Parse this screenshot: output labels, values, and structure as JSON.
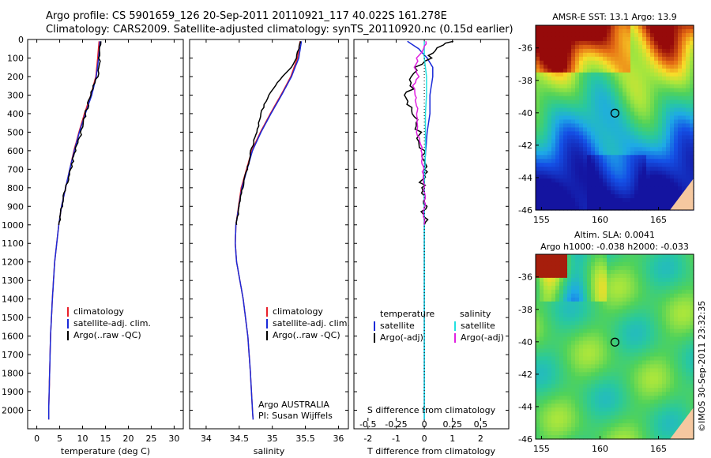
{
  "header": {
    "line1": "Argo profile: CS 5901659_126 20-Sep-2011 20110921_117 40.022S 161.278E",
    "line2": "Climatology: CARS2009. Satellite-adjusted climatology: synTS_20110920.nc (0.15d earlier)"
  },
  "colors": {
    "climatology": "#e8202a",
    "satellite": "#1a2ad8",
    "argo": "#000000",
    "salinity_satellite": "#22e0e0",
    "salinity_argo": "#e020e0"
  },
  "chart_data": [
    {
      "type": "line",
      "xlabel": "temperature (deg C)",
      "ylabel": "",
      "xlim": [
        -2,
        32
      ],
      "ylim": [
        2100,
        0
      ],
      "x_ticks": [
        "0",
        "5",
        "10",
        "15",
        "20",
        "25",
        "30"
      ],
      "y_ticks": [
        "0",
        "100",
        "200",
        "300",
        "400",
        "500",
        "600",
        "700",
        "800",
        "900",
        "1000",
        "1100",
        "1200",
        "1300",
        "1400",
        "1500",
        "1600",
        "1700",
        "1800",
        "1900",
        "2000"
      ],
      "legend": [
        "climatology",
        "satellite-adj. clim.",
        "Argo(..raw -QC)"
      ],
      "series": [
        {
          "name": "climatology",
          "depth": [
            10,
            100,
            200,
            300,
            400,
            500,
            600,
            700,
            800,
            900,
            1000,
            1200,
            1400,
            1600,
            1800,
            2000,
            2050
          ],
          "values": [
            13.6,
            13.3,
            12.9,
            11.8,
            10.4,
            9.2,
            8.1,
            7.2,
            6.3,
            5.4,
            4.8,
            3.9,
            3.4,
            3.0,
            2.8,
            2.6,
            2.6
          ]
        },
        {
          "name": "satellite-adj. clim.",
          "depth": [
            10,
            100,
            200,
            300,
            400,
            500,
            600,
            700,
            800,
            900,
            1000,
            1200,
            1400,
            1600,
            1800,
            2000,
            2050
          ],
          "values": [
            13.8,
            13.5,
            13.0,
            12.0,
            10.6,
            9.3,
            8.2,
            7.2,
            6.3,
            5.4,
            4.8,
            3.9,
            3.4,
            3.0,
            2.8,
            2.6,
            2.6
          ]
        },
        {
          "name": "Argo(..raw -QC)",
          "depth": [
            10,
            60,
            100,
            150,
            200,
            250,
            300,
            400,
            500,
            600,
            700,
            800,
            900,
            1000
          ],
          "values": [
            14.0,
            13.8,
            13.7,
            13.6,
            13.3,
            12.4,
            11.8,
            10.6,
            9.7,
            8.4,
            7.4,
            6.4,
            5.4,
            4.8
          ]
        }
      ]
    },
    {
      "type": "line",
      "xlabel": "salinity",
      "ylabel": "",
      "xlim": [
        33.75,
        36.15
      ],
      "ylim": [
        2100,
        0
      ],
      "x_ticks": [
        "34",
        "34.5",
        "35",
        "35.5",
        "36"
      ],
      "legend": [
        "climatology",
        "satellite-adj. clim.",
        "Argo(..raw -QC)"
      ],
      "annotation": [
        "Argo AUSTRALIA",
        "PI: Susan Wijffels"
      ],
      "series": [
        {
          "name": "climatology",
          "depth": [
            10,
            100,
            200,
            300,
            400,
            500,
            600,
            800,
            1000,
            1100,
            1200,
            1400,
            1600,
            1800,
            2000,
            2050
          ],
          "values": [
            35.42,
            35.38,
            35.28,
            35.13,
            34.97,
            34.82,
            34.69,
            34.53,
            34.45,
            34.44,
            34.46,
            34.56,
            34.63,
            34.67,
            34.7,
            34.71
          ]
        },
        {
          "name": "satellite-adj. clim.",
          "depth": [
            10,
            100,
            200,
            300,
            400,
            500,
            600,
            800,
            1000,
            1100,
            1200,
            1400,
            1600,
            1800,
            2000,
            2050
          ],
          "values": [
            35.44,
            35.4,
            35.29,
            35.14,
            34.98,
            34.83,
            34.7,
            34.54,
            34.45,
            34.44,
            34.46,
            34.56,
            34.63,
            34.67,
            34.7,
            34.71
          ]
        },
        {
          "name": "Argo(..raw -QC)",
          "depth": [
            10,
            50,
            100,
            150,
            200,
            250,
            300,
            350,
            400,
            450,
            500,
            600,
            700,
            800,
            900,
            1000
          ],
          "values": [
            35.43,
            35.4,
            35.36,
            35.28,
            35.15,
            35.05,
            34.95,
            34.88,
            34.83,
            34.8,
            34.76,
            34.68,
            34.62,
            34.55,
            34.5,
            34.46
          ]
        }
      ]
    },
    {
      "type": "line",
      "xlabel": "T difference from climatology",
      "ylabel": "",
      "xlim": [
        -2.5,
        3.0
      ],
      "ylim": [
        2100,
        0
      ],
      "x_ticks": [
        "-2",
        "-1",
        "0",
        "1",
        "2"
      ],
      "x2_label": "S difference from climatology",
      "x2_ticks": [
        "-0.5",
        "-0.25",
        "0",
        "0.25",
        "0.5"
      ],
      "legend_left_title": "temperature",
      "legend_right_title": "salinity",
      "legend": [
        "satellite",
        "Argo(-adj)",
        "satellite",
        "Argo(-adj)"
      ],
      "series": [
        {
          "name": "temperature satellite",
          "depth": [
            10,
            50,
            100,
            150,
            200,
            300,
            400,
            500,
            700,
            1000,
            1500,
            2000,
            2050
          ],
          "values": [
            -0.6,
            -0.2,
            0.1,
            0.3,
            0.3,
            0.2,
            0.2,
            0.1,
            0.0,
            0.0,
            0.0,
            0.0,
            0.0
          ]
        },
        {
          "name": "temperature Argo(-adj)",
          "depth": [
            10,
            30,
            60,
            100,
            150,
            200,
            250,
            300,
            350,
            400,
            450,
            500,
            550,
            600,
            700,
            800,
            900,
            1000
          ],
          "values": [
            1.0,
            0.7,
            0.4,
            0.2,
            -0.3,
            -0.5,
            -0.4,
            -0.6,
            -0.5,
            -0.4,
            -0.3,
            -0.2,
            -0.3,
            -0.1,
            0.0,
            -0.1,
            0.0,
            0.0
          ]
        },
        {
          "name": "salinity satellite",
          "depth": [
            10,
            100,
            200,
            300,
            400,
            600,
            800,
            1000,
            1500,
            2000,
            2050
          ],
          "values": [
            0.0,
            0.0,
            0.02,
            0.02,
            0.01,
            0.01,
            0.0,
            0.0,
            0.0,
            0.0,
            0.0
          ]
        },
        {
          "name": "salinity Argo(-adj)",
          "depth": [
            10,
            50,
            100,
            150,
            200,
            250,
            300,
            400,
            500,
            550,
            600,
            700,
            800,
            900,
            1000
          ],
          "values": [
            0.02,
            0.0,
            -0.06,
            -0.08,
            -0.05,
            -0.1,
            -0.08,
            -0.06,
            -0.06,
            -0.04,
            -0.02,
            -0.01,
            0.0,
            0.0,
            0.0
          ]
        }
      ]
    },
    {
      "type": "heatmap",
      "title": "AMSR-E SST: 13.1 Argo: 13.9",
      "x_ticks": [
        "155",
        "160",
        "165"
      ],
      "y_ticks": [
        "-36",
        "-38",
        "-40",
        "-42",
        "-44",
        "-46"
      ],
      "xlim": [
        154.5,
        168
      ],
      "ylim": [
        -46,
        -34.6
      ],
      "marker": {
        "lon": 161.278,
        "lat": -40.022
      }
    },
    {
      "type": "heatmap",
      "title": "Altim. SLA: 0.0041",
      "subtitle": "Argo h1000: -0.038 h2000: -0.033",
      "x_ticks": [
        "155",
        "160",
        "165"
      ],
      "y_ticks": [
        "-36",
        "-38",
        "-40",
        "-42",
        "-44",
        "-46"
      ],
      "xlim": [
        154.5,
        168
      ],
      "ylim": [
        -46,
        -34.6
      ],
      "marker": {
        "lon": 161.278,
        "lat": -40.022
      }
    }
  ],
  "credit": "©IMOS 30-Sep-2011 23:32:35"
}
